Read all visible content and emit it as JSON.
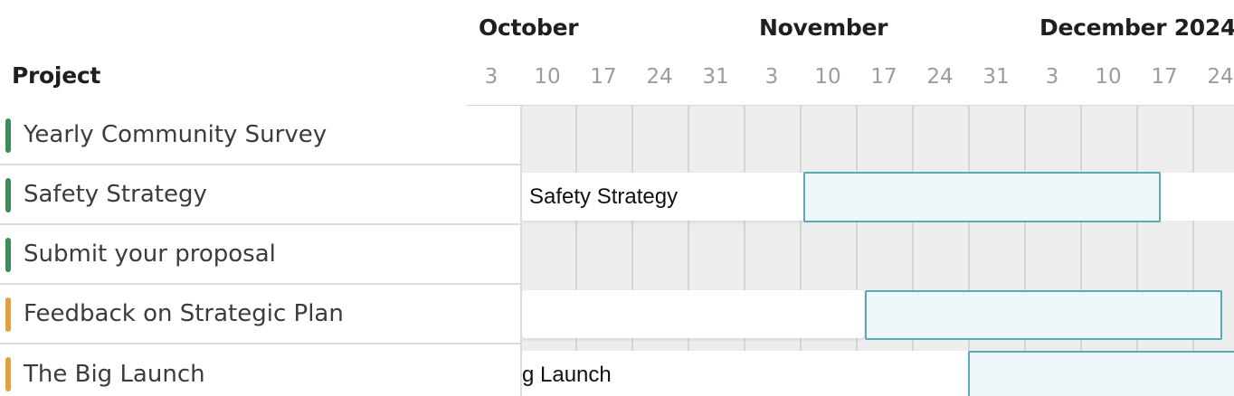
{
  "header": {
    "project_label": "Project",
    "months": [
      "October",
      "November",
      "December 2024"
    ],
    "days": [
      "3",
      "10",
      "17",
      "24",
      "31",
      "3",
      "10",
      "17",
      "24",
      "31",
      "3",
      "10",
      "17",
      "24"
    ]
  },
  "projects": [
    {
      "name": "Yearly Community Survey",
      "status_color": "#3d8b5a"
    },
    {
      "name": "Safety Strategy",
      "status_color": "#3d8b5a"
    },
    {
      "name": "Submit your proposal",
      "status_color": "#3d8b5a"
    },
    {
      "name": "Feedback on Strategic Plan",
      "status_color": "#e0a23f"
    },
    {
      "name": "The Big Launch",
      "status_color": "#e0a23f"
    }
  ],
  "timeline_labels": {
    "safety_strategy": "Safety Strategy",
    "big_launch": "g Launch"
  },
  "colors": {
    "bar_fill": "#eef7fa",
    "bar_border": "#5ca9b3",
    "grid_background": "#ededee",
    "status_green": "#3d8b5a",
    "status_orange": "#e0a23f"
  }
}
